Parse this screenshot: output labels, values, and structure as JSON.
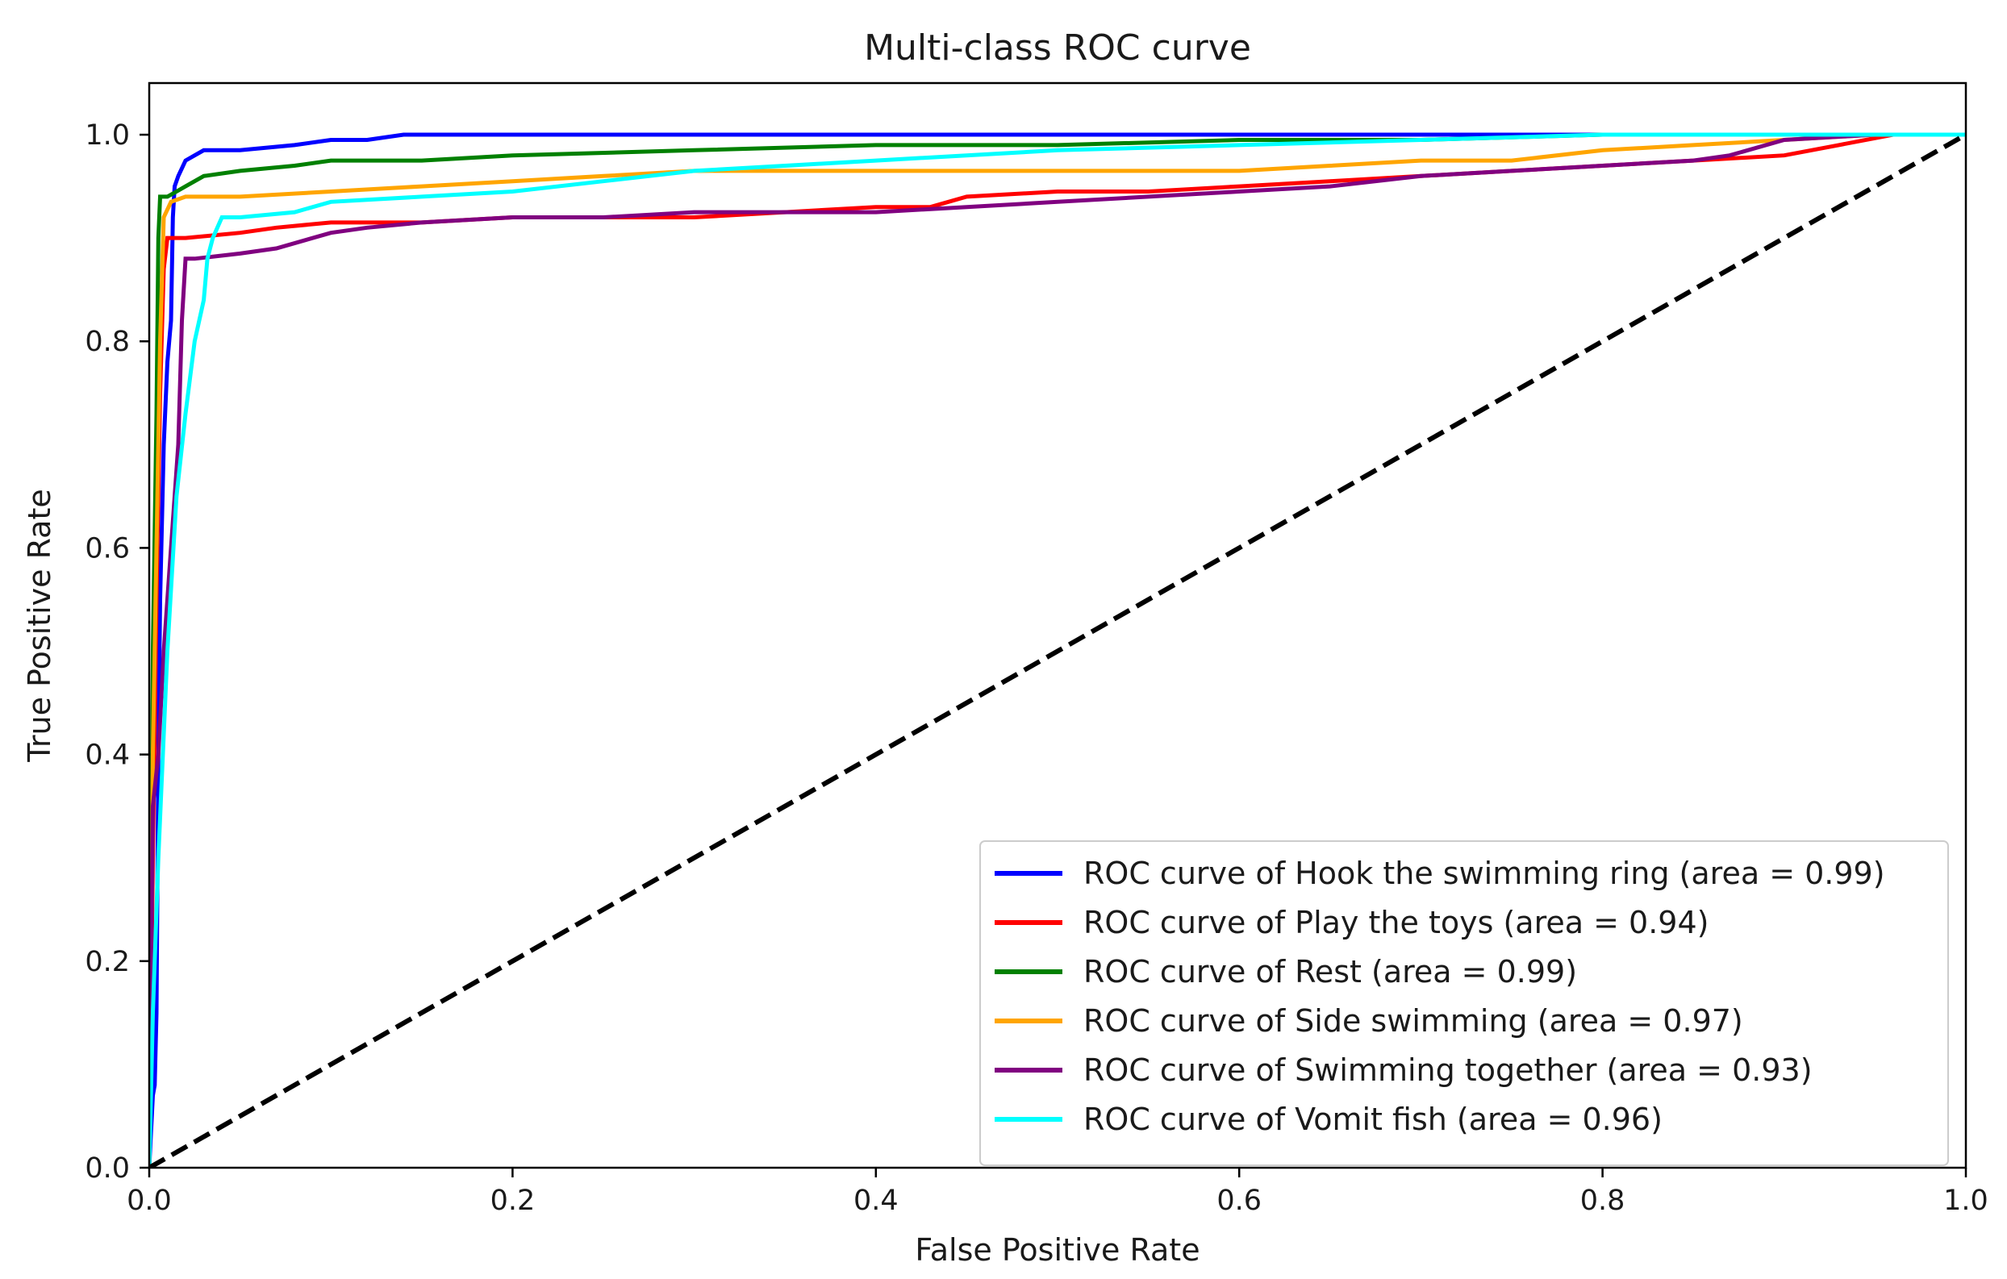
{
  "chart_data": {
    "type": "line",
    "title": "Multi-class ROC curve",
    "xlabel": "False Positive Rate",
    "ylabel": "True Positive Rate",
    "xlim": [
      0.0,
      1.0
    ],
    "ylim": [
      0.0,
      1.05
    ],
    "xticks": [
      0.0,
      0.2,
      0.4,
      0.6,
      0.8,
      1.0
    ],
    "yticks": [
      0.0,
      0.2,
      0.4,
      0.6,
      0.8,
      1.0
    ],
    "xtick_labels": [
      "0.0",
      "0.2",
      "0.4",
      "0.6",
      "0.8",
      "1.0"
    ],
    "ytick_labels": [
      "0.0",
      "0.2",
      "0.4",
      "0.6",
      "0.8",
      "1.0"
    ],
    "grid": false,
    "legend_position": "lower-right",
    "series": [
      {
        "name": "ROC curve of Hook the swimming ring (area = 0.99)",
        "color": "#0000ff",
        "x": [
          0,
          0.002,
          0.003,
          0.004,
          0.005,
          0.006,
          0.008,
          0.01,
          0.012,
          0.013,
          0.014,
          0.016,
          0.02,
          0.025,
          0.03,
          0.05,
          0.08,
          0.1,
          0.12,
          0.14,
          0.3,
          0.5,
          0.8,
          1.0
        ],
        "y": [
          0,
          0.07,
          0.08,
          0.15,
          0.4,
          0.55,
          0.7,
          0.78,
          0.82,
          0.92,
          0.95,
          0.96,
          0.975,
          0.98,
          0.985,
          0.985,
          0.99,
          0.995,
          0.995,
          1.0,
          1.0,
          1.0,
          1.0,
          1.0
        ]
      },
      {
        "name": "ROC curve of Play the toys (area = 0.94)",
        "color": "#ff0000",
        "x": [
          0,
          0.002,
          0.004,
          0.006,
          0.008,
          0.01,
          0.02,
          0.05,
          0.07,
          0.1,
          0.15,
          0.2,
          0.25,
          0.3,
          0.35,
          0.4,
          0.43,
          0.45,
          0.5,
          0.55,
          0.6,
          0.65,
          0.7,
          0.75,
          0.8,
          0.85,
          0.9,
          0.93,
          0.96,
          1.0
        ],
        "y": [
          0,
          0.3,
          0.55,
          0.75,
          0.87,
          0.9,
          0.9,
          0.905,
          0.91,
          0.915,
          0.915,
          0.92,
          0.92,
          0.92,
          0.925,
          0.93,
          0.93,
          0.94,
          0.945,
          0.945,
          0.95,
          0.955,
          0.96,
          0.965,
          0.97,
          0.975,
          0.98,
          0.99,
          1.0,
          1.0
        ]
      },
      {
        "name": "ROC curve of Rest (area = 0.99)",
        "color": "#008000",
        "x": [
          0,
          0.002,
          0.004,
          0.005,
          0.006,
          0.01,
          0.015,
          0.02,
          0.03,
          0.05,
          0.08,
          0.1,
          0.15,
          0.2,
          0.3,
          0.4,
          0.5,
          0.6,
          0.7,
          0.8,
          0.9,
          1.0
        ],
        "y": [
          0,
          0.5,
          0.73,
          0.9,
          0.94,
          0.94,
          0.945,
          0.95,
          0.96,
          0.965,
          0.97,
          0.975,
          0.975,
          0.98,
          0.985,
          0.99,
          0.99,
          0.995,
          0.995,
          1.0,
          1.0,
          1.0
        ]
      },
      {
        "name": "ROC curve of Side swimming (area = 0.97)",
        "color": "#ffa500",
        "x": [
          0,
          0.002,
          0.004,
          0.006,
          0.008,
          0.012,
          0.02,
          0.05,
          0.1,
          0.15,
          0.2,
          0.25,
          0.3,
          0.4,
          0.5,
          0.55,
          0.6,
          0.65,
          0.7,
          0.75,
          0.8,
          0.85,
          0.9,
          0.95,
          1.0
        ],
        "y": [
          0,
          0.4,
          0.6,
          0.8,
          0.92,
          0.935,
          0.94,
          0.94,
          0.945,
          0.95,
          0.955,
          0.96,
          0.965,
          0.965,
          0.965,
          0.965,
          0.965,
          0.97,
          0.975,
          0.975,
          0.985,
          0.99,
          0.995,
          1.0,
          1.0
        ]
      },
      {
        "name": "ROC curve of Swimming together (area = 0.93)",
        "color": "#800080",
        "x": [
          0,
          0.002,
          0.005,
          0.008,
          0.012,
          0.016,
          0.018,
          0.02,
          0.025,
          0.05,
          0.07,
          0.1,
          0.12,
          0.15,
          0.2,
          0.25,
          0.3,
          0.35,
          0.4,
          0.45,
          0.5,
          0.55,
          0.6,
          0.65,
          0.7,
          0.75,
          0.8,
          0.85,
          0.87,
          0.9,
          0.95,
          1.0
        ],
        "y": [
          0,
          0.35,
          0.4,
          0.5,
          0.6,
          0.7,
          0.82,
          0.88,
          0.88,
          0.885,
          0.89,
          0.905,
          0.91,
          0.915,
          0.92,
          0.92,
          0.925,
          0.925,
          0.925,
          0.93,
          0.935,
          0.94,
          0.945,
          0.95,
          0.96,
          0.965,
          0.97,
          0.975,
          0.98,
          0.995,
          1.0,
          1.0
        ]
      },
      {
        "name": "ROC curve of Vomit fish (area = 0.96)",
        "color": "#00ffff",
        "x": [
          0,
          0.002,
          0.005,
          0.01,
          0.015,
          0.02,
          0.025,
          0.03,
          0.032,
          0.035,
          0.04,
          0.05,
          0.08,
          0.1,
          0.15,
          0.2,
          0.25,
          0.3,
          0.35,
          0.4,
          0.5,
          0.6,
          0.7,
          0.8,
          0.9,
          1.0
        ],
        "y": [
          0,
          0.15,
          0.3,
          0.5,
          0.65,
          0.73,
          0.8,
          0.84,
          0.88,
          0.9,
          0.92,
          0.92,
          0.925,
          0.935,
          0.94,
          0.945,
          0.955,
          0.965,
          0.97,
          0.975,
          0.985,
          0.99,
          0.995,
          1.0,
          1.0,
          1.0
        ]
      },
      {
        "name": "",
        "color": "#000000",
        "dashed": true,
        "in_legend": false,
        "x": [
          0,
          1
        ],
        "y": [
          0,
          1
        ]
      }
    ]
  }
}
